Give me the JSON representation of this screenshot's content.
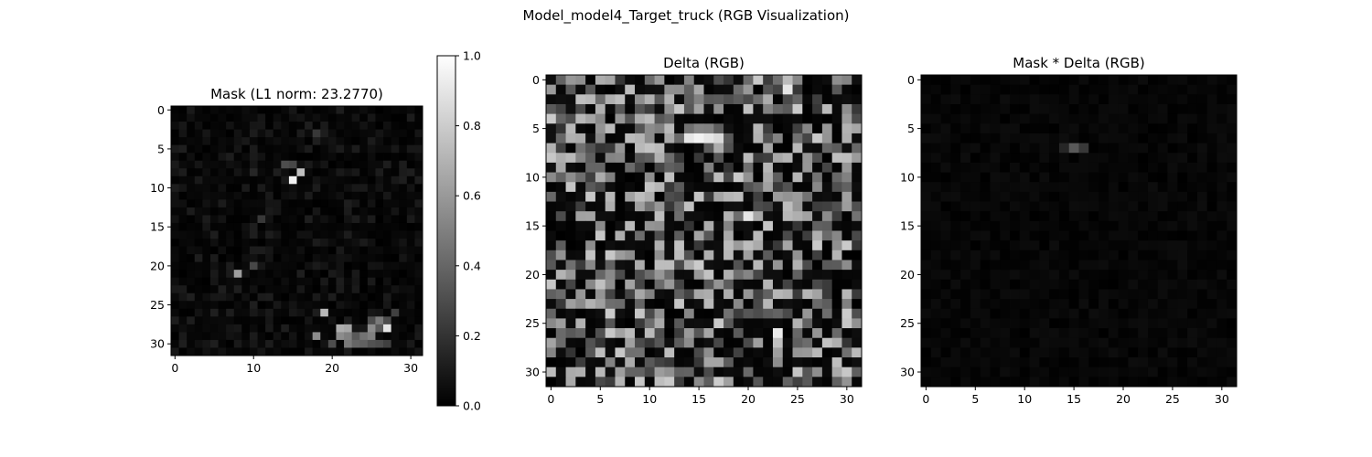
{
  "suptitle": "Model_model4_Target_truck (RGB Visualization)",
  "chart_data": [
    {
      "type": "heatmap",
      "panel": "mask",
      "title": "Mask (L1 norm: 23.2770)",
      "colormap": "gray",
      "grid_size": [
        32,
        32
      ],
      "xlim": [
        -0.5,
        31.5
      ],
      "ylim": [
        31.5,
        -0.5
      ],
      "xticks": [
        0,
        10,
        20,
        30
      ],
      "yticks": [
        0,
        5,
        10,
        15,
        20,
        25,
        30
      ],
      "colorbar": {
        "range": [
          0,
          1
        ],
        "ticks": [
          "0.0",
          "0.2",
          "0.4",
          "0.6",
          "0.8",
          "1.0"
        ]
      },
      "l1_norm": 23.277,
      "notable_cells": [
        {
          "row": 9,
          "col": 15,
          "value": 0.95
        },
        {
          "row": 8,
          "col": 16,
          "value": 0.75
        },
        {
          "row": 7,
          "col": 14,
          "value": 0.3
        },
        {
          "row": 7,
          "col": 15,
          "value": 0.28
        },
        {
          "row": 3,
          "col": 18,
          "value": 0.22
        },
        {
          "row": 8,
          "col": 10,
          "value": 0.15
        },
        {
          "row": 21,
          "col": 8,
          "value": 0.62
        },
        {
          "row": 20,
          "col": 10,
          "value": 0.28
        },
        {
          "row": 14,
          "col": 11,
          "value": 0.22
        },
        {
          "row": 26,
          "col": 19,
          "value": 0.72
        },
        {
          "row": 28,
          "col": 21,
          "value": 0.68
        },
        {
          "row": 28,
          "col": 22,
          "value": 0.65
        },
        {
          "row": 29,
          "col": 21,
          "value": 0.55
        },
        {
          "row": 29,
          "col": 22,
          "value": 0.5
        },
        {
          "row": 30,
          "col": 22,
          "value": 0.48
        },
        {
          "row": 30,
          "col": 23,
          "value": 0.4
        },
        {
          "row": 29,
          "col": 24,
          "value": 0.45
        },
        {
          "row": 30,
          "col": 24,
          "value": 0.38
        },
        {
          "row": 28,
          "col": 25,
          "value": 0.55
        },
        {
          "row": 29,
          "col": 25,
          "value": 0.5
        },
        {
          "row": 28,
          "col": 26,
          "value": 0.35
        },
        {
          "row": 27,
          "col": 26,
          "value": 0.48
        },
        {
          "row": 27,
          "col": 25,
          "value": 0.3
        },
        {
          "row": 29,
          "col": 18,
          "value": 0.55
        },
        {
          "row": 30,
          "col": 20,
          "value": 0.3
        },
        {
          "row": 26,
          "col": 28,
          "value": 0.25
        },
        {
          "row": 27,
          "col": 27,
          "value": 0.3
        },
        {
          "row": 28,
          "col": 27,
          "value": 0.9
        },
        {
          "row": 30,
          "col": 25,
          "value": 0.32
        },
        {
          "row": 29,
          "col": 23,
          "value": 0.35
        },
        {
          "row": 30,
          "col": 26,
          "value": 0.3
        },
        {
          "row": 30,
          "col": 27,
          "value": 0.25
        }
      ]
    },
    {
      "type": "heatmap",
      "panel": "delta",
      "title": "Delta (RGB)",
      "colormap": "rgb",
      "grid_size": [
        32,
        32
      ],
      "xlim": [
        -0.5,
        31.5
      ],
      "ylim": [
        31.5,
        -0.5
      ],
      "xticks": [
        0,
        5,
        10,
        15,
        20,
        25,
        30
      ],
      "yticks": [
        0,
        5,
        10,
        15,
        20,
        25,
        30
      ],
      "value_range": [
        0,
        1
      ],
      "notable_cells": [
        {
          "row": 6,
          "col": 15,
          "value": 0.95
        },
        {
          "row": 6,
          "col": 16,
          "value": 0.9
        },
        {
          "row": 6,
          "col": 14,
          "value": 0.9
        },
        {
          "row": 6,
          "col": 17,
          "value": 0.85
        },
        {
          "row": 1,
          "col": 24,
          "value": 0.9
        },
        {
          "row": 26,
          "col": 23,
          "value": 0.92
        },
        {
          "row": 14,
          "col": 20,
          "value": 0.9
        }
      ]
    },
    {
      "type": "heatmap",
      "panel": "mask_x_delta",
      "title": "Mask * Delta (RGB)",
      "colormap": "rgb",
      "grid_size": [
        32,
        32
      ],
      "xlim": [
        -0.5,
        31.5
      ],
      "ylim": [
        31.5,
        -0.5
      ],
      "xticks": [
        0,
        5,
        10,
        15,
        20,
        25,
        30
      ],
      "yticks": [
        0,
        5,
        10,
        15,
        20,
        25,
        30
      ],
      "value_range": [
        0,
        1
      ],
      "notable_cells": [
        {
          "row": 7,
          "col": 15,
          "value": 0.35
        },
        {
          "row": 7,
          "col": 16,
          "value": 0.22
        },
        {
          "row": 7,
          "col": 14,
          "value": 0.15
        }
      ]
    }
  ]
}
